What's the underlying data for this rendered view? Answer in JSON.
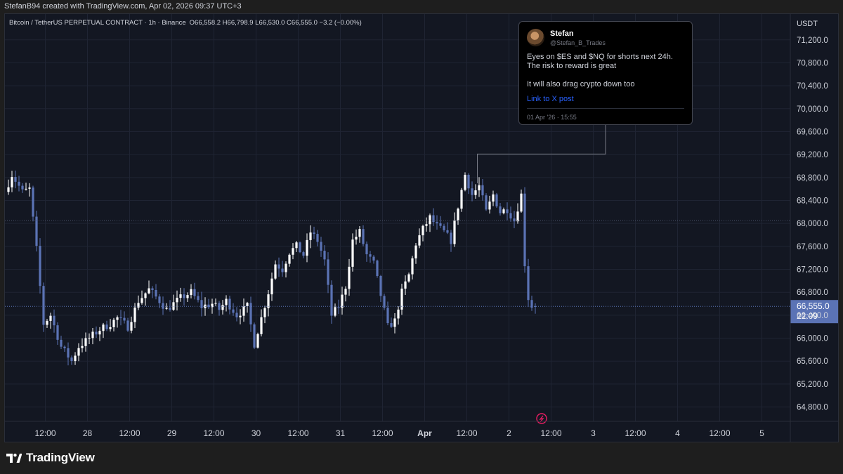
{
  "header": {
    "attribution": "StefanB94 created with TradingView.com, Apr 02, 2026 09:37 UTC+3"
  },
  "brand": {
    "name": "TradingView"
  },
  "tweet": {
    "name": "Stefan",
    "handle": "@Stefan_B_Trades",
    "text": "Eyes on $ES and $NQ for shorts next 24h. The risk to reward is great\n\nIt will also drag crypto down too",
    "link_label": "Link to X post",
    "timestamp": "01 Apr '26 · 15:55"
  },
  "colors": {
    "up": "#ffffff",
    "down": "#5b73b5",
    "background": "#131722",
    "price_label": "#5b73b5"
  },
  "chart_data": {
    "type": "candlestick",
    "title": "Bitcoin / TetherUS PERPETUAL CONTRACT · 1h · Binance",
    "ohlc_readout": "O66,558.2 H66,798.9 L66,530.0 C66,555.0 −3.2 (−0.00%)",
    "currency": "USDT",
    "ylim": [
      64550,
      71650
    ],
    "y_ticks": [
      "71,200.0",
      "70,800.0",
      "70,400.0",
      "70,000.0",
      "69,600.0",
      "69,200.0",
      "68,800.0",
      "68,400.0",
      "68,000.0",
      "67,600.0",
      "67,200.0",
      "66,800.0",
      "66,400.0",
      "66,000.0",
      "65,600.0",
      "65,200.0",
      "64,800.0"
    ],
    "x_ticks": [
      {
        "label": "12:00",
        "hour": 10.5
      },
      {
        "label": "28",
        "hour": 22.5
      },
      {
        "label": "12:00",
        "hour": 34.5
      },
      {
        "label": "29",
        "hour": 46.5
      },
      {
        "label": "12:00",
        "hour": 58.5
      },
      {
        "label": "30",
        "hour": 70.5
      },
      {
        "label": "12:00",
        "hour": 82.5
      },
      {
        "label": "31",
        "hour": 94.5
      },
      {
        "label": "12:00",
        "hour": 106.5
      },
      {
        "label": "Apr",
        "hour": 118.5
      },
      {
        "label": "12:00",
        "hour": 130.5
      },
      {
        "label": "2",
        "hour": 142.5
      },
      {
        "label": "12:00",
        "hour": 154.5
      },
      {
        "label": "3",
        "hour": 166.5
      },
      {
        "label": "12:00",
        "hour": 178.5
      },
      {
        "label": "4",
        "hour": 190.5
      },
      {
        "label": "12:00",
        "hour": 202.5
      },
      {
        "label": "5",
        "hour": 214.5
      }
    ],
    "last_price": {
      "value": 66555.0,
      "label": "66,555.0",
      "countdown": "22:09"
    },
    "reference_line": 68050,
    "candle_x_range": [
      0,
      150
    ],
    "close_path": [
      [
        0,
        68550
      ],
      [
        2,
        68850
      ],
      [
        5,
        68550
      ],
      [
        7,
        68600
      ],
      [
        9,
        67550
      ],
      [
        11,
        66250
      ],
      [
        13,
        66400
      ],
      [
        16,
        65850
      ],
      [
        19,
        65600
      ],
      [
        21,
        65850
      ],
      [
        24,
        66000
      ],
      [
        27,
        66150
      ],
      [
        30,
        66250
      ],
      [
        32,
        66350
      ],
      [
        35,
        66200
      ],
      [
        38,
        66650
      ],
      [
        41,
        66850
      ],
      [
        44,
        66650
      ],
      [
        46,
        66500
      ],
      [
        50,
        66700
      ],
      [
        53,
        66800
      ],
      [
        56,
        66550
      ],
      [
        59,
        66600
      ],
      [
        61,
        66500
      ],
      [
        63,
        66650
      ],
      [
        66,
        66400
      ],
      [
        69,
        66550
      ],
      [
        71,
        65900
      ],
      [
        73,
        66350
      ],
      [
        75,
        66800
      ],
      [
        77,
        67300
      ],
      [
        79,
        67200
      ],
      [
        81,
        67500
      ],
      [
        83,
        67600
      ],
      [
        85,
        67450
      ],
      [
        87,
        67850
      ],
      [
        89,
        67700
      ],
      [
        91,
        67350
      ],
      [
        93,
        66400
      ],
      [
        95,
        66550
      ],
      [
        97,
        66900
      ],
      [
        99,
        67700
      ],
      [
        101,
        67850
      ],
      [
        103,
        67450
      ],
      [
        105,
        67300
      ],
      [
        107,
        66750
      ],
      [
        109,
        66200
      ],
      [
        111,
        66300
      ],
      [
        113,
        66800
      ],
      [
        115,
        67100
      ],
      [
        117,
        67650
      ],
      [
        119,
        67900
      ],
      [
        121,
        68100
      ],
      [
        123,
        67950
      ],
      [
        125,
        67850
      ],
      [
        127,
        67700
      ],
      [
        129,
        68300
      ],
      [
        131,
        68850
      ],
      [
        133,
        68500
      ],
      [
        135,
        68650
      ],
      [
        137,
        68200
      ],
      [
        139,
        68500
      ],
      [
        141,
        68200
      ],
      [
        143,
        68250
      ],
      [
        145,
        68050
      ],
      [
        147,
        68500
      ],
      [
        148,
        67300
      ],
      [
        149,
        66700
      ],
      [
        150,
        66555
      ]
    ]
  }
}
